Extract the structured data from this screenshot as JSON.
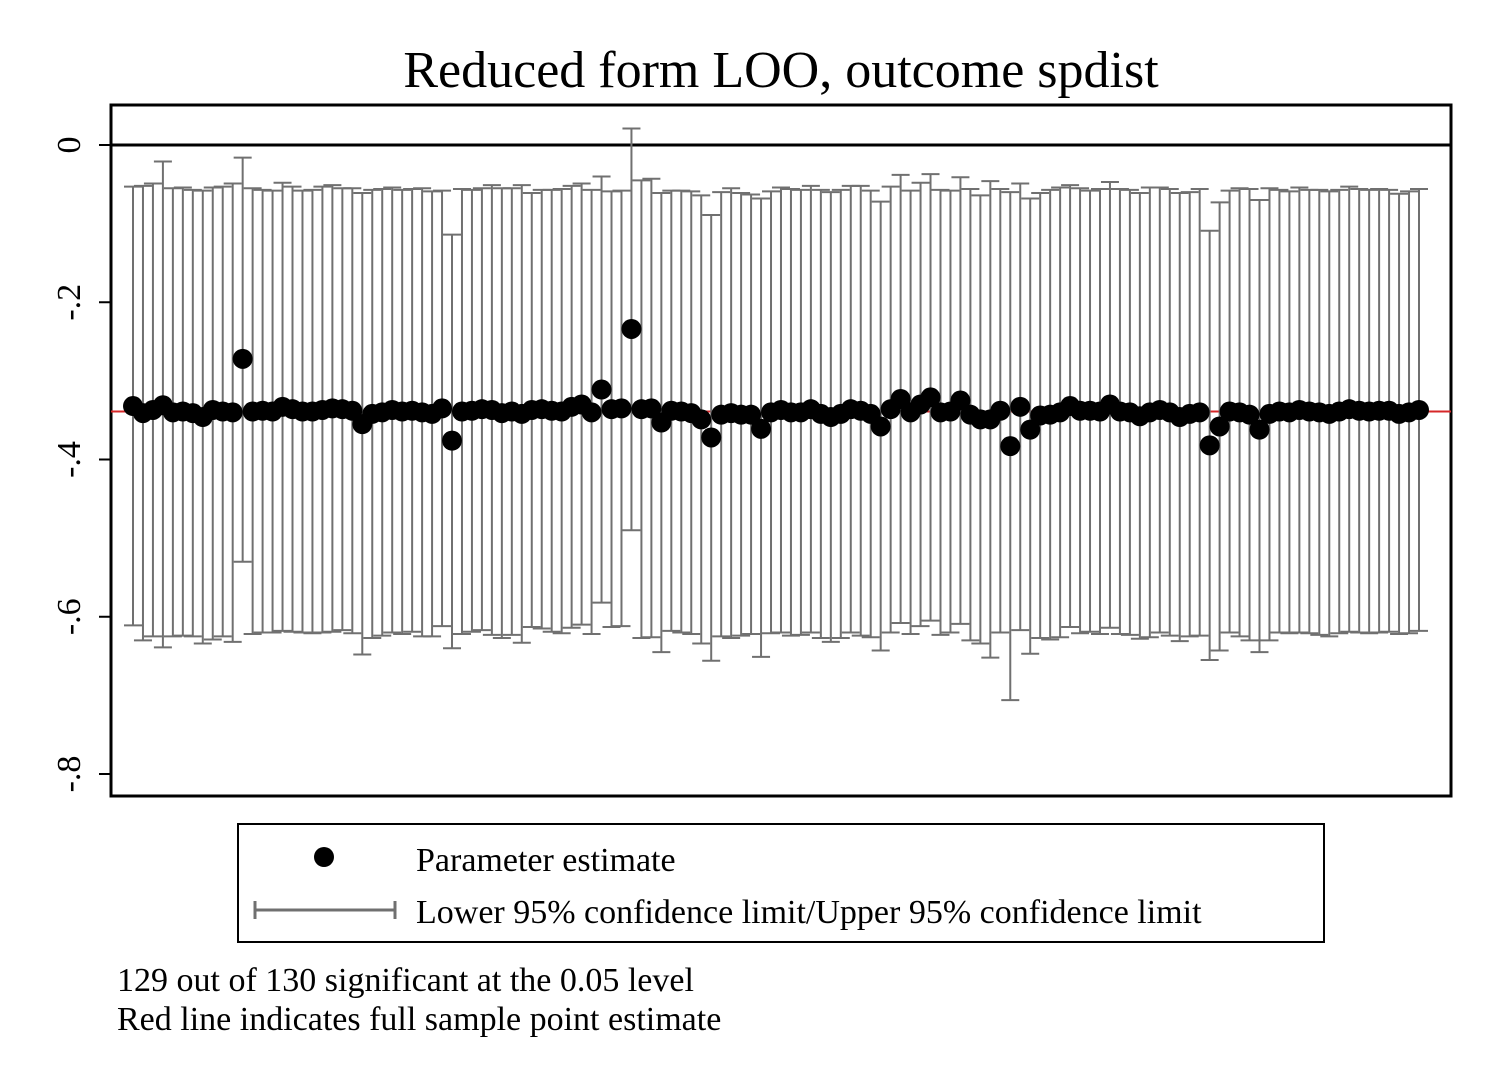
{
  "chart_data": {
    "type": "scatter",
    "title": "Reduced form LOO, outcome spdist",
    "xlabel": "",
    "ylabel": "",
    "ylim": [
      -0.82,
      0.05
    ],
    "yticks": [
      0,
      -0.2,
      -0.4,
      -0.6,
      -0.8
    ],
    "ytick_labels": [
      "0",
      "-.2",
      "-.4",
      "-.6",
      "-.8"
    ],
    "reference_line": 0,
    "full_sample_estimate": -0.339,
    "colors": {
      "point": "#000000",
      "ci": "#707070",
      "red_line": "#d62728",
      "zero_line": "#000000"
    },
    "legend": {
      "position": "bottom",
      "entries": [
        "Parameter estimate",
        "Lower 95% confidence limit/Upper 95% confidence limit"
      ]
    },
    "estimates": [
      -0.332,
      -0.341,
      -0.337,
      -0.331,
      -0.34,
      -0.339,
      -0.341,
      -0.346,
      -0.337,
      -0.339,
      -0.34,
      -0.272,
      -0.339,
      -0.338,
      -0.339,
      -0.333,
      -0.336,
      -0.339,
      -0.339,
      -0.337,
      -0.335,
      -0.336,
      -0.338,
      -0.355,
      -0.342,
      -0.34,
      -0.337,
      -0.339,
      -0.338,
      -0.34,
      -0.342,
      -0.335,
      -0.376,
      -0.339,
      -0.338,
      -0.336,
      -0.337,
      -0.341,
      -0.339,
      -0.342,
      -0.337,
      -0.336,
      -0.338,
      -0.339,
      -0.333,
      -0.33,
      -0.34,
      -0.311,
      -0.336,
      -0.335,
      -0.234,
      -0.336,
      -0.335,
      -0.353,
      -0.338,
      -0.339,
      -0.341,
      -0.349,
      -0.372,
      -0.343,
      -0.341,
      -0.343,
      -0.343,
      -0.361,
      -0.34,
      -0.337,
      -0.34,
      -0.34,
      -0.336,
      -0.342,
      -0.346,
      -0.342,
      -0.336,
      -0.338,
      -0.342,
      -0.358,
      -0.336,
      -0.323,
      -0.34,
      -0.33,
      -0.321,
      -0.34,
      -0.339,
      -0.325,
      -0.343,
      -0.349,
      -0.349,
      -0.338,
      -0.383,
      -0.333,
      -0.362,
      -0.344,
      -0.343,
      -0.34,
      -0.332,
      -0.338,
      -0.338,
      -0.339,
      -0.33,
      -0.339,
      -0.34,
      -0.345,
      -0.34,
      -0.337,
      -0.34,
      -0.346,
      -0.342,
      -0.34,
      -0.382,
      -0.358,
      -0.339,
      -0.34,
      -0.343,
      -0.362,
      -0.342,
      -0.339,
      -0.34,
      -0.337,
      -0.339,
      -0.34,
      -0.342,
      -0.339,
      -0.336,
      -0.338,
      -0.339,
      -0.338,
      -0.338,
      -0.342,
      -0.34,
      -0.337
    ],
    "lower_ci": [
      -0.611,
      -0.63,
      -0.625,
      -0.639,
      -0.625,
      -0.624,
      -0.625,
      -0.634,
      -0.629,
      -0.625,
      -0.632,
      -0.53,
      -0.622,
      -0.62,
      -0.62,
      -0.618,
      -0.619,
      -0.62,
      -0.621,
      -0.62,
      -0.619,
      -0.617,
      -0.621,
      -0.648,
      -0.627,
      -0.624,
      -0.62,
      -0.622,
      -0.619,
      -0.625,
      -0.625,
      -0.612,
      -0.64,
      -0.622,
      -0.619,
      -0.617,
      -0.623,
      -0.627,
      -0.623,
      -0.633,
      -0.613,
      -0.615,
      -0.619,
      -0.621,
      -0.614,
      -0.61,
      -0.622,
      -0.582,
      -0.613,
      -0.612,
      -0.49,
      -0.627,
      -0.626,
      -0.645,
      -0.618,
      -0.62,
      -0.622,
      -0.634,
      -0.656,
      -0.625,
      -0.627,
      -0.624,
      -0.622,
      -0.651,
      -0.621,
      -0.62,
      -0.624,
      -0.623,
      -0.62,
      -0.627,
      -0.632,
      -0.627,
      -0.62,
      -0.624,
      -0.626,
      -0.643,
      -0.62,
      -0.608,
      -0.622,
      -0.612,
      -0.605,
      -0.623,
      -0.62,
      -0.609,
      -0.63,
      -0.634,
      -0.652,
      -0.62,
      -0.706,
      -0.617,
      -0.647,
      -0.627,
      -0.629,
      -0.626,
      -0.613,
      -0.621,
      -0.619,
      -0.622,
      -0.614,
      -0.622,
      -0.623,
      -0.628,
      -0.626,
      -0.62,
      -0.624,
      -0.631,
      -0.625,
      -0.624,
      -0.655,
      -0.643,
      -0.62,
      -0.625,
      -0.63,
      -0.645,
      -0.63,
      -0.62,
      -0.621,
      -0.62,
      -0.621,
      -0.623,
      -0.625,
      -0.621,
      -0.619,
      -0.62,
      -0.621,
      -0.62,
      -0.619,
      -0.622,
      -0.621,
      -0.618
    ],
    "upper_ci": [
      -0.053,
      -0.052,
      -0.049,
      -0.021,
      -0.055,
      -0.054,
      -0.057,
      -0.058,
      -0.054,
      -0.053,
      -0.049,
      -0.016,
      -0.055,
      -0.057,
      -0.058,
      -0.048,
      -0.053,
      -0.058,
      -0.057,
      -0.053,
      -0.051,
      -0.055,
      -0.055,
      -0.061,
      -0.057,
      -0.056,
      -0.054,
      -0.057,
      -0.056,
      -0.055,
      -0.059,
      -0.058,
      -0.114,
      -0.056,
      -0.057,
      -0.055,
      -0.051,
      -0.055,
      -0.055,
      -0.051,
      -0.061,
      -0.057,
      -0.057,
      -0.056,
      -0.052,
      -0.049,
      -0.057,
      -0.04,
      -0.059,
      -0.058,
      0.021,
      -0.045,
      -0.043,
      -0.061,
      -0.058,
      -0.058,
      -0.059,
      -0.064,
      -0.089,
      -0.06,
      -0.055,
      -0.061,
      -0.063,
      -0.068,
      -0.059,
      -0.054,
      -0.056,
      -0.057,
      -0.052,
      -0.057,
      -0.06,
      -0.057,
      -0.052,
      -0.052,
      -0.058,
      -0.072,
      -0.053,
      -0.038,
      -0.058,
      -0.048,
      -0.037,
      -0.057,
      -0.058,
      -0.041,
      -0.056,
      -0.064,
      -0.046,
      -0.056,
      -0.06,
      -0.049,
      -0.068,
      -0.061,
      -0.057,
      -0.054,
      -0.051,
      -0.055,
      -0.058,
      -0.056,
      -0.047,
      -0.056,
      -0.057,
      -0.061,
      -0.054,
      -0.054,
      -0.056,
      -0.061,
      -0.06,
      -0.056,
      -0.109,
      -0.073,
      -0.058,
      -0.055,
      -0.056,
      -0.07,
      -0.055,
      -0.057,
      -0.059,
      -0.054,
      -0.057,
      -0.057,
      -0.059,
      -0.057,
      -0.053,
      -0.056,
      -0.057,
      -0.056,
      -0.057,
      -0.062,
      -0.059,
      -0.056
    ]
  },
  "notes": {
    "line1": "129 out of 130 significant at the 0.05 level",
    "line2": "Red line indicates full sample point estimate"
  }
}
